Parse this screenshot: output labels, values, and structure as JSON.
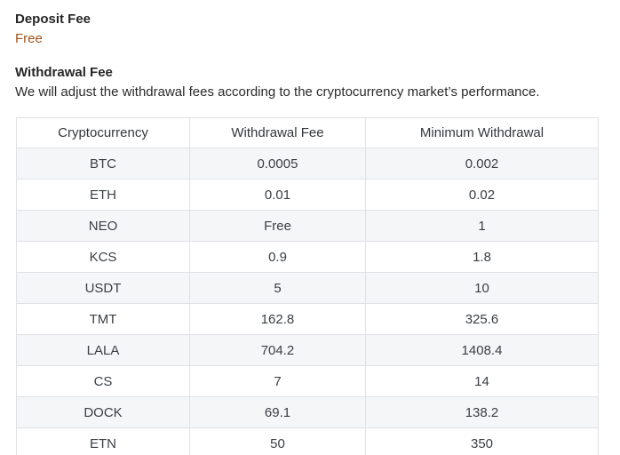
{
  "page": {
    "deposit_fee_heading": "Deposit Fee",
    "deposit_fee_value": "Free",
    "withdrawal_fee_heading": "Withdrawal Fee",
    "withdrawal_fee_description": "We will adjust the withdrawal fees according to the cryptocurrency market’s performance."
  },
  "colors": {
    "free_text": "#a0541c",
    "heading_text": "#262626",
    "body_text": "#2b2b2b",
    "table_text": "#3b4045",
    "table_border": "#dfe1e5",
    "stripe_background": "#f5f6f8"
  },
  "table": {
    "columns": [
      "Cryptocurrency",
      "Withdrawal Fee",
      "Minimum Withdrawal"
    ],
    "rows": [
      {
        "cryptocurrency": "BTC",
        "withdrawal_fee": "0.0005",
        "minimum_withdrawal": "0.002"
      },
      {
        "cryptocurrency": "ETH",
        "withdrawal_fee": "0.01",
        "minimum_withdrawal": "0.02"
      },
      {
        "cryptocurrency": "NEO",
        "withdrawal_fee": "Free",
        "minimum_withdrawal": "1"
      },
      {
        "cryptocurrency": "KCS",
        "withdrawal_fee": "0.9",
        "minimum_withdrawal": "1.8"
      },
      {
        "cryptocurrency": "USDT",
        "withdrawal_fee": "5",
        "minimum_withdrawal": "10"
      },
      {
        "cryptocurrency": "TMT",
        "withdrawal_fee": "162.8",
        "minimum_withdrawal": "325.6"
      },
      {
        "cryptocurrency": "LALA",
        "withdrawal_fee": "704.2",
        "minimum_withdrawal": "1408.4"
      },
      {
        "cryptocurrency": "CS",
        "withdrawal_fee": "7",
        "minimum_withdrawal": "14"
      },
      {
        "cryptocurrency": "DOCK",
        "withdrawal_fee": "69.1",
        "minimum_withdrawal": "138.2"
      },
      {
        "cryptocurrency": "ETN",
        "withdrawal_fee": "50",
        "minimum_withdrawal": "350"
      }
    ]
  }
}
